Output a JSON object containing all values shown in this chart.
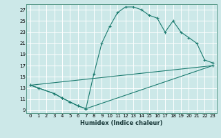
{
  "title": "",
  "xlabel": "Humidex (Indice chaleur)",
  "ylabel": "",
  "bg_color": "#cce8e8",
  "line_color": "#1a7a6e",
  "grid_color": "#ffffff",
  "xlim": [
    -0.5,
    23.5
  ],
  "ylim": [
    8.5,
    28.0
  ],
  "xticks": [
    0,
    1,
    2,
    3,
    4,
    5,
    6,
    7,
    8,
    9,
    10,
    11,
    12,
    13,
    14,
    15,
    16,
    17,
    18,
    19,
    20,
    21,
    22,
    23
  ],
  "yticks": [
    9,
    11,
    13,
    15,
    17,
    19,
    21,
    23,
    25,
    27
  ],
  "line1_x": [
    0,
    1,
    3,
    4,
    5,
    6,
    7,
    8,
    9,
    10,
    11,
    12,
    13,
    14,
    15,
    16,
    17,
    18,
    19,
    20,
    21,
    22,
    23
  ],
  "line1_y": [
    13.5,
    13.0,
    12.0,
    11.2,
    10.5,
    9.8,
    9.3,
    15.5,
    21.0,
    24.0,
    26.5,
    27.5,
    27.5,
    27.0,
    26.0,
    25.5,
    23.0,
    25.0,
    23.0,
    22.0,
    21.0,
    18.0,
    17.5
  ],
  "line2_x": [
    0,
    1,
    3,
    4,
    5,
    6,
    7,
    23
  ],
  "line2_y": [
    13.5,
    13.0,
    12.0,
    11.2,
    10.5,
    9.8,
    9.3,
    17.0
  ],
  "line3_x": [
    0,
    23
  ],
  "line3_y": [
    13.5,
    17.0
  ],
  "figsize": [
    3.2,
    2.0
  ],
  "dpi": 100
}
